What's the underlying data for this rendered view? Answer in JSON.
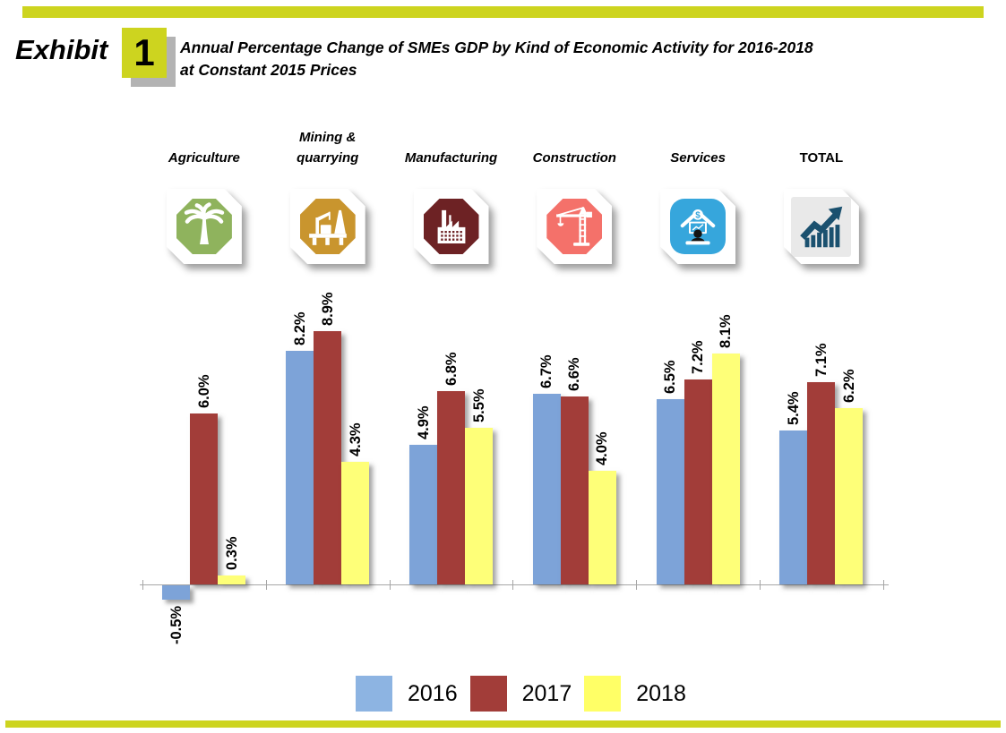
{
  "page": {
    "background": "#ffffff"
  },
  "colors": {
    "accent": "#cdd41f",
    "box_shadow_gray": "#b3b3b3",
    "axis": "#a6a6a6"
  },
  "header": {
    "exhibit_label": "Exhibit",
    "exhibit_number": "1",
    "title_line1": "Annual Percentage Change of SMEs GDP by Kind of Economic Activity for 2016-2018",
    "title_line2": "at Constant 2015 Prices"
  },
  "categories": [
    {
      "label": "Agriculture",
      "label_lines": [
        "Agriculture"
      ],
      "icon": "palm-tree-icon",
      "badge_color": "#8fb35d",
      "badge_shape": "octagon"
    },
    {
      "label": "Mining & quarrying",
      "label_lines": [
        "Mining &",
        "quarrying"
      ],
      "icon": "oil-rig-icon",
      "badge_color": "#c9952e",
      "badge_shape": "octagon"
    },
    {
      "label": "Manufacturing",
      "label_lines": [
        "Manufacturing"
      ],
      "icon": "factory-icon",
      "badge_color": "#6d2224",
      "badge_shape": "octagon"
    },
    {
      "label": "Construction",
      "label_lines": [
        "Construction"
      ],
      "icon": "tower-crane-icon",
      "badge_color": "#f4716a",
      "badge_shape": "octagon"
    },
    {
      "label": "Services",
      "label_lines": [
        "Services"
      ],
      "icon": "computer-user-icon",
      "badge_color": "#36a6dc",
      "badge_shape": "rounded"
    },
    {
      "label": "TOTAL",
      "label_lines": [
        "TOTAL"
      ],
      "icon": "growth-chart-icon",
      "badge_color": "#e9e9e9",
      "badge_shape": "square",
      "not_italic": true
    }
  ],
  "chart_data": {
    "type": "bar",
    "title": "Annual Percentage Change of SMEs GDP by Kind of Economic Activity for 2016-2018 at Constant 2015 Prices",
    "categories": [
      "Agriculture",
      "Mining & quarrying",
      "Manufacturing",
      "Construction",
      "Services",
      "TOTAL"
    ],
    "series": [
      {
        "name": "2016",
        "color": "#7da3d8",
        "values": [
          -0.5,
          8.2,
          4.9,
          6.7,
          6.5,
          5.4
        ]
      },
      {
        "name": "2017",
        "color": "#a23d39",
        "values": [
          6.0,
          8.9,
          6.8,
          6.6,
          7.2,
          7.1
        ]
      },
      {
        "name": "2018",
        "color": "#feff78",
        "values": [
          0.3,
          4.3,
          5.5,
          4.0,
          8.1,
          6.2
        ]
      }
    ],
    "value_suffix": "%",
    "value_labels": "rotated-90-above-bars",
    "ylim": [
      -1,
      9.5
    ],
    "gridlines": false,
    "legend_position": "bottom"
  },
  "legend": {
    "items": [
      {
        "label": "2016",
        "color": "#8db4e2"
      },
      {
        "label": "2017",
        "color": "#a23d39"
      },
      {
        "label": "2018",
        "color": "#ffff66"
      }
    ]
  }
}
